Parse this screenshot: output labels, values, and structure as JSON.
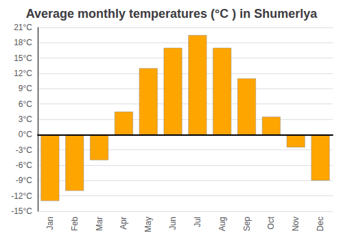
{
  "chart_data": {
    "type": "bar",
    "title": "Average monthly temperatures (°C ) in Shumerlya",
    "categories": [
      "Jan",
      "Feb",
      "Mar",
      "Apr",
      "May",
      "Jun",
      "Jul",
      "Aug",
      "Sep",
      "Oct",
      "Nov",
      "Dec"
    ],
    "values": [
      -13,
      -11,
      -5,
      4.5,
      13,
      17,
      19.5,
      17,
      11,
      3.5,
      -2.5,
      -9
    ],
    "color": "#FFA500",
    "ylim": [
      -15,
      21
    ],
    "yticks": [
      {
        "value": -15,
        "label": "-15°C"
      },
      {
        "value": -12,
        "label": "-12°C"
      },
      {
        "value": -9,
        "label": "-9°C"
      },
      {
        "value": -6,
        "label": "-6°C"
      },
      {
        "value": -3,
        "label": "-3°C"
      },
      {
        "value": 0,
        "label": "0°C"
      },
      {
        "value": 3,
        "label": "3°C"
      },
      {
        "value": 6,
        "label": "6°C"
      },
      {
        "value": 9,
        "label": "9°C"
      },
      {
        "value": 12,
        "label": "12°C"
      },
      {
        "value": 15,
        "label": "15°C"
      },
      {
        "value": 18,
        "label": "18°C"
      },
      {
        "value": 21,
        "label": "21°C"
      }
    ],
    "grid": true
  }
}
